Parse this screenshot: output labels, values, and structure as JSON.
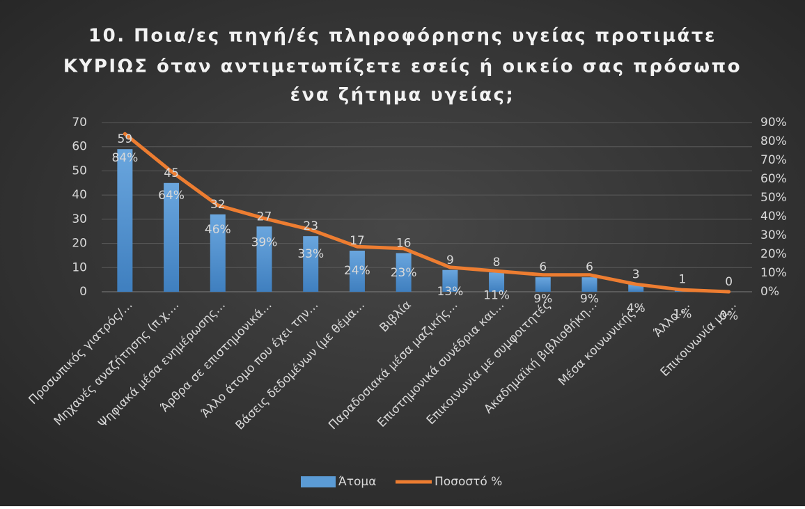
{
  "chart_data": {
    "type": "bar_line",
    "title": [
      "10. Ποια/ες πηγή/ές πληροφόρησης υγείας προτιμάτε",
      "ΚΥΡΙΩΣ όταν αντιμετωπίζετε εσείς ή οικείο σας πρόσωπο",
      "ένα ζήτημα υγείας;"
    ],
    "categories": [
      "Προσωπικός γιατρός/…",
      "Μηχανές αναζήτησης (π.χ.…",
      "Ψηφιακά μέσα ενημέρωσης…",
      "Άρθρα σε επιστημονικά…",
      "Άλλο άτομο που έχει την…",
      "Βάσεις δεδομένων (με θέμα…",
      "Βιβλία",
      "Παραδοσιακά μέσα μαζικής…",
      "Επιστημονικά συνέδρια και…",
      "Επικοινωνία με συμφοιτητές",
      "Ακαδημαϊκή βιβλιοθήκη…",
      "Μέσα κοινωνικής…",
      "Άλλο:…",
      "Επικοινωνία με…"
    ],
    "series": [
      {
        "name": "Άτομα",
        "color": "#5b9bd5",
        "values": [
          59,
          45,
          32,
          27,
          23,
          17,
          16,
          9,
          8,
          6,
          6,
          3,
          1,
          0
        ]
      },
      {
        "name": "Ποσοστό %",
        "color": "#ed7d31",
        "axis": "y2",
        "values": [
          84,
          64,
          46,
          39,
          33,
          24,
          23,
          13,
          11,
          9,
          9,
          4,
          1,
          0
        ],
        "value_labels": [
          "84%",
          "64%",
          "46%",
          "39%",
          "33%",
          "24%",
          "23%",
          "13%",
          "11%",
          "9%",
          "9%",
          "4%",
          "1%",
          "0%"
        ]
      }
    ],
    "ylim": [
      0,
      70
    ],
    "yticks": [
      0,
      10,
      20,
      30,
      40,
      50,
      60,
      70
    ],
    "y2lim": [
      0,
      90
    ],
    "y2ticks": [
      {
        "value": 0,
        "label": "0%"
      },
      {
        "value": 10,
        "label": "10%"
      },
      {
        "value": 20,
        "label": "20%"
      },
      {
        "value": 30,
        "label": "30%"
      },
      {
        "value": 40,
        "label": "40%"
      },
      {
        "value": 50,
        "label": "50%"
      },
      {
        "value": 60,
        "label": "60%"
      },
      {
        "value": 70,
        "label": "70%"
      },
      {
        "value": 80,
        "label": "80%"
      },
      {
        "value": 90,
        "label": "90%"
      }
    ],
    "grid": true,
    "legend": "bottom"
  }
}
